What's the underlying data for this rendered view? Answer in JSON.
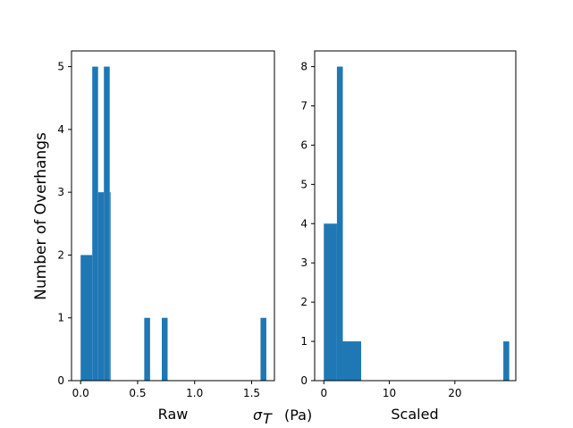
{
  "figure": {
    "y_axis_label": "Number of Overhangs",
    "shared_xlabel_symbol": "σ",
    "shared_xlabel_subscript": "T",
    "shared_xlabel_unit": "(Pa)"
  },
  "chart_data": [
    {
      "id": "raw",
      "type": "bar",
      "xlabel": "Raw",
      "ylabel": "Number of Overhangs",
      "xlim": [
        -0.08,
        1.7
      ],
      "ylim": [
        0,
        5.25
      ],
      "xticks": [
        0.0,
        0.5,
        1.0,
        1.5
      ],
      "xtick_labels": [
        "0.0",
        "0.5",
        "1.0",
        "1.5"
      ],
      "yticks": [
        0,
        1,
        2,
        3,
        4,
        5
      ],
      "ytick_labels": [
        "0",
        "1",
        "2",
        "3",
        "4",
        "5"
      ],
      "bars": [
        {
          "x0": 0.0,
          "x1": 0.102,
          "count": 2
        },
        {
          "x0": 0.102,
          "x1": 0.153,
          "count": 5
        },
        {
          "x0": 0.153,
          "x1": 0.204,
          "count": 3
        },
        {
          "x0": 0.204,
          "x1": 0.255,
          "count": 5
        },
        {
          "x0": 0.255,
          "x1": 0.262,
          "count": 3
        },
        {
          "x0": 0.558,
          "x1": 0.609,
          "count": 1
        },
        {
          "x0": 0.712,
          "x1": 0.763,
          "count": 1
        },
        {
          "x0": 1.578,
          "x1": 1.629,
          "count": 1
        }
      ],
      "color": "#1f77b4"
    },
    {
      "id": "scaled",
      "type": "bar",
      "xlabel": "Scaled",
      "ylabel": "",
      "xlim": [
        -1.4,
        29.3
      ],
      "ylim": [
        0,
        8.4
      ],
      "xticks": [
        0,
        10,
        20
      ],
      "xtick_labels": [
        "0",
        "10",
        "20"
      ],
      "yticks": [
        0,
        1,
        2,
        3,
        4,
        5,
        6,
        7,
        8
      ],
      "ytick_labels": [
        "0",
        "1",
        "2",
        "3",
        "4",
        "5",
        "6",
        "7",
        "8"
      ],
      "bars": [
        {
          "x0": 0.0,
          "x1": 2.0,
          "count": 4
        },
        {
          "x0": 2.0,
          "x1": 2.9,
          "count": 8
        },
        {
          "x0": 2.9,
          "x1": 5.7,
          "count": 1
        },
        {
          "x0": 27.4,
          "x1": 28.3,
          "count": 1
        }
      ],
      "color": "#1f77b4"
    }
  ]
}
